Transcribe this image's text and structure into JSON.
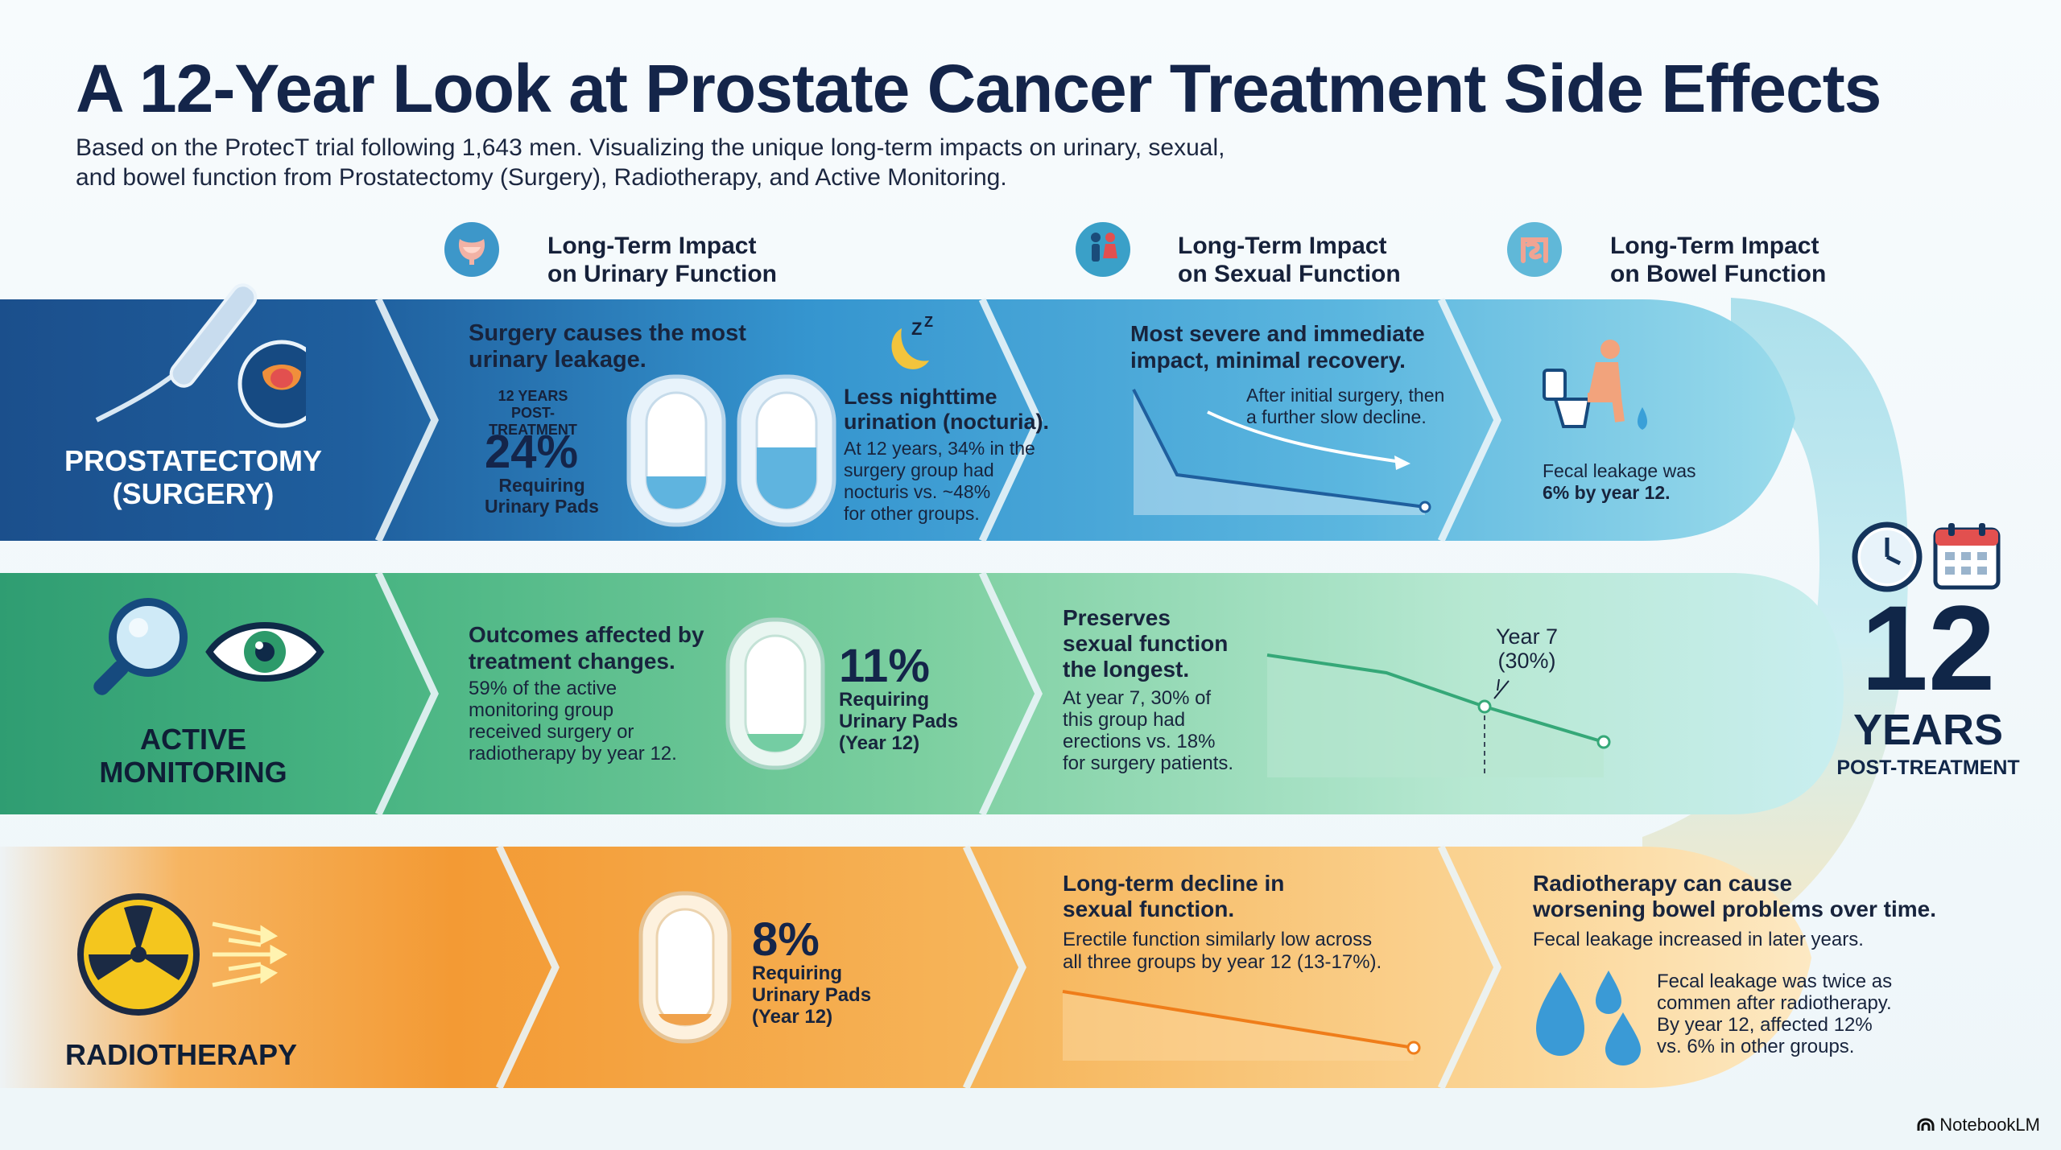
{
  "header": {
    "title": "A 12-Year Look at Prostate Cancer Treatment Side Effects",
    "subtitle_line1": "Based on the ProtecT trial following 1,643 men. Visualizing the unique long-term impacts on urinary, sexual,",
    "subtitle_line2": "and bowel function from Prostatectomy (Surgery), Radiotherapy, and Active Monitoring."
  },
  "columns": {
    "urinary": {
      "line1": "Long-Term Impact",
      "line2": "on Urinary Function",
      "icon": "bladder-icon"
    },
    "sexual": {
      "line1": "Long-Term Impact",
      "line2": "on Sexual Function",
      "icon": "couple-icon"
    },
    "bowel": {
      "line1": "Long-Term Impact",
      "line2": "on Bowel Function",
      "icon": "intestine-icon"
    }
  },
  "colors": {
    "surgery": "#1f5f9e",
    "monitoring": "#35a878",
    "radiotherapy": "#f08a1c"
  },
  "surgery": {
    "label_line1": "PROSTATECTOMY",
    "label_line2": "(SURGERY)",
    "urinary_heading_line1": "Surgery causes the most",
    "urinary_heading_line2": "urinary leakage.",
    "years_line1": "12 YEARS",
    "years_line2": "POST-TREATMENT",
    "pads_value": "24%",
    "pads_label_line1": "Requiring",
    "pads_label_line2": "Urinary Pads",
    "nocturia_heading_line1": "Less nighttime",
    "nocturia_heading_line2": "urination (nocturia).",
    "nocturia_line1": "At 12 years, 34% in the",
    "nocturia_line2": "surgery group had",
    "nocturia_line3": "nocturis vs. ~48%",
    "nocturia_line4": "for other groups.",
    "sexual_heading_line1": "Most severe and immediate",
    "sexual_heading_line2": "impact, minimal recovery.",
    "sexual_note_line1": "After initial surgery, then",
    "sexual_note_line2": "a further slow decline.",
    "bowel_line1": "Fecal leakage was",
    "bowel_line2": "6% by year 12."
  },
  "monitoring": {
    "label_line1": "ACTIVE",
    "label_line2": "MONITORING",
    "heading_line1": "Outcomes affected by",
    "heading_line2": "treatment changes.",
    "body_line1": "59% of the active",
    "body_line2": "monitoring group",
    "body_line3": "received surgery or",
    "body_line4": "radiotherapy by year 12.",
    "pads_value": "11%",
    "pads_label_line1": "Requiring",
    "pads_label_line2": "Urinary Pads",
    "pads_label_line3": "(Year 12)",
    "sexual_heading_line1": "Preserves",
    "sexual_heading_line2": "sexual function",
    "sexual_heading_line3": "the longest.",
    "sexual_body_line1": "At year 7, 30% of",
    "sexual_body_line2": "this group had",
    "sexual_body_line3": "erections vs. 18%",
    "sexual_body_line4": "for surgery patients.",
    "annotation_line1": "Year 7",
    "annotation_line2": "(30%)"
  },
  "radiotherapy": {
    "label": "RADIOTHERAPY",
    "pads_value": "8%",
    "pads_label_line1": "Requiring",
    "pads_label_line2": "Urinary Pads",
    "pads_label_line3": "(Year 12)",
    "sexual_heading_line1": "Long-term decline in",
    "sexual_heading_line2": "sexual function.",
    "sexual_body_line1": "Erectile function similarly low across",
    "sexual_body_line2": "all three groups by year 12 (13-17%).",
    "bowel_heading_line1": "Radiotherapy can cause",
    "bowel_heading_line2": "worsening bowel problems over time.",
    "bowel_line": "Fecal leakage increased in later years.",
    "bowel_body_line1": "Fecal leakage was twice as",
    "bowel_body_line2": "commen after radiotherapy.",
    "bowel_body_line3": "By year 12, affected 12%",
    "bowel_body_line4": "vs. 6% in other groups."
  },
  "milestone": {
    "number": "12",
    "unit": "YEARS",
    "caption": "POST-TREATMENT"
  },
  "brand": "NotebookLM"
}
